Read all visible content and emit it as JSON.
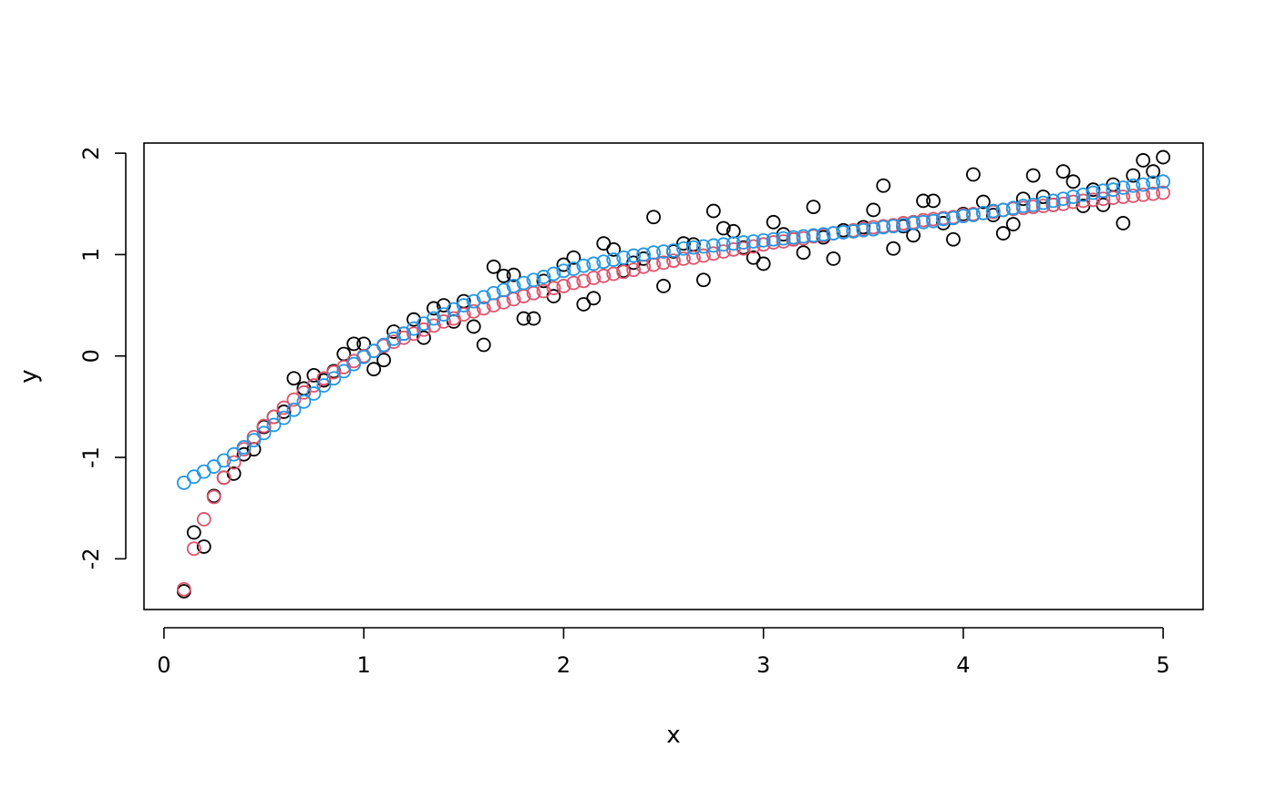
{
  "chart_data": {
    "type": "scatter",
    "title": "",
    "xlabel": "x",
    "ylabel": "y",
    "xlim": [
      -0.1,
      5.2
    ],
    "ylim": [
      -2.5,
      2.1
    ],
    "xticks": [
      0,
      1,
      2,
      3,
      4,
      5
    ],
    "yticks": [
      -2,
      -1,
      0,
      1,
      2
    ],
    "xtick_labels": [
      "0",
      "1",
      "2",
      "3",
      "4",
      "5"
    ],
    "ytick_labels": [
      "-2",
      "-1",
      "0",
      "1",
      "2"
    ],
    "grid": false,
    "legend": "none",
    "series": [
      {
        "color": "#000000",
        "marker": "open-circle",
        "x": [
          0.1,
          0.15,
          0.2,
          0.25,
          0.3,
          0.35,
          0.4,
          0.45,
          0.5,
          0.55,
          0.6,
          0.65,
          0.7,
          0.75,
          0.8,
          0.85,
          0.9,
          0.95,
          1.0,
          1.05,
          1.1,
          1.15,
          1.2,
          1.25,
          1.3,
          1.35,
          1.4,
          1.45,
          1.5,
          1.55,
          1.6,
          1.65,
          1.7,
          1.75,
          1.8,
          1.85,
          1.9,
          1.95,
          2.0,
          2.05,
          2.1,
          2.15,
          2.2,
          2.25,
          2.3,
          2.35,
          2.4,
          2.45,
          2.5,
          2.55,
          2.6,
          2.65,
          2.7,
          2.75,
          2.8,
          2.85,
          2.9,
          2.95,
          3.0,
          3.05,
          3.1,
          3.15,
          3.2,
          3.25,
          3.3,
          3.35,
          3.4,
          3.45,
          3.5,
          3.55,
          3.6,
          3.65,
          3.7,
          3.75,
          3.8,
          3.85,
          3.9,
          3.95,
          4.0,
          4.05,
          4.1,
          4.15,
          4.2,
          4.25,
          4.3,
          4.35,
          4.4,
          4.45,
          4.5,
          4.55,
          4.6,
          4.65,
          4.7,
          4.75,
          4.8,
          4.85,
          4.9,
          4.95,
          5.0
        ],
        "y": [
          -2.32,
          -1.74,
          -1.88,
          -1.38,
          -1.2,
          -1.16,
          -0.97,
          -0.92,
          -0.7,
          -0.6,
          -0.55,
          -0.22,
          -0.32,
          -0.19,
          -0.24,
          -0.15,
          0.02,
          0.12,
          0.12,
          -0.13,
          -0.04,
          0.24,
          0.22,
          0.36,
          0.18,
          0.47,
          0.5,
          0.34,
          0.54,
          0.29,
          0.11,
          0.88,
          0.79,
          0.8,
          0.37,
          0.37,
          0.74,
          0.59,
          0.9,
          0.97,
          0.51,
          0.57,
          1.11,
          1.05,
          0.84,
          0.92,
          0.96,
          1.37,
          0.69,
          1.03,
          1.11,
          1.1,
          0.75,
          1.43,
          1.26,
          1.23,
          1.07,
          0.97,
          0.91,
          1.32,
          1.2,
          1.15,
          1.02,
          1.47,
          1.17,
          0.96,
          1.24,
          1.23,
          1.27,
          1.44,
          1.68,
          1.06,
          1.28,
          1.19,
          1.53,
          1.53,
          1.31,
          1.15,
          1.4,
          1.79,
          1.52,
          1.39,
          1.21,
          1.3,
          1.55,
          1.78,
          1.57,
          1.49,
          1.82,
          1.72,
          1.48,
          1.64,
          1.49,
          1.69,
          1.31,
          1.78,
          1.93,
          1.82,
          1.96
        ]
      },
      {
        "color": "#df536b",
        "marker": "open-circle",
        "x": [
          0.1,
          0.15,
          0.2,
          0.25,
          0.3,
          0.35,
          0.4,
          0.45,
          0.5,
          0.55,
          0.6,
          0.65,
          0.7,
          0.75,
          0.8,
          0.85,
          0.9,
          0.95,
          1.0,
          1.05,
          1.1,
          1.15,
          1.2,
          1.25,
          1.3,
          1.35,
          1.4,
          1.45,
          1.5,
          1.55,
          1.6,
          1.65,
          1.7,
          1.75,
          1.8,
          1.85,
          1.9,
          1.95,
          2.0,
          2.05,
          2.1,
          2.15,
          2.2,
          2.25,
          2.3,
          2.35,
          2.4,
          2.45,
          2.5,
          2.55,
          2.6,
          2.65,
          2.7,
          2.75,
          2.8,
          2.85,
          2.9,
          2.95,
          3.0,
          3.05,
          3.1,
          3.15,
          3.2,
          3.25,
          3.3,
          3.35,
          3.4,
          3.45,
          3.5,
          3.55,
          3.6,
          3.65,
          3.7,
          3.75,
          3.8,
          3.85,
          3.9,
          3.95,
          4.0,
          4.05,
          4.1,
          4.15,
          4.2,
          4.25,
          4.3,
          4.35,
          4.4,
          4.45,
          4.5,
          4.55,
          4.6,
          4.65,
          4.7,
          4.75,
          4.8,
          4.85,
          4.9,
          4.95,
          5.0
        ],
        "y": [
          -2.3,
          -1.9,
          -1.61,
          -1.39,
          -1.2,
          -1.05,
          -0.92,
          -0.8,
          -0.69,
          -0.6,
          -0.51,
          -0.43,
          -0.36,
          -0.29,
          -0.22,
          -0.16,
          -0.11,
          -0.05,
          0.0,
          0.05,
          0.1,
          0.14,
          0.18,
          0.22,
          0.26,
          0.3,
          0.34,
          0.37,
          0.41,
          0.44,
          0.47,
          0.5,
          0.53,
          0.56,
          0.59,
          0.62,
          0.64,
          0.67,
          0.69,
          0.72,
          0.74,
          0.77,
          0.79,
          0.81,
          0.83,
          0.85,
          0.88,
          0.9,
          0.92,
          0.94,
          0.96,
          0.97,
          0.99,
          1.01,
          1.03,
          1.05,
          1.06,
          1.08,
          1.1,
          1.12,
          1.13,
          1.15,
          1.16,
          1.18,
          1.19,
          1.21,
          1.22,
          1.24,
          1.25,
          1.27,
          1.28,
          1.29,
          1.31,
          1.32,
          1.34,
          1.35,
          1.36,
          1.37,
          1.39,
          1.4,
          1.41,
          1.42,
          1.44,
          1.45,
          1.46,
          1.47,
          1.48,
          1.49,
          1.5,
          1.52,
          1.53,
          1.54,
          1.55,
          1.56,
          1.57,
          1.58,
          1.59,
          1.6,
          1.61
        ]
      },
      {
        "color": "#2297e6",
        "marker": "open-circle",
        "x": [
          0.1,
          0.15,
          0.2,
          0.25,
          0.3,
          0.35,
          0.4,
          0.45,
          0.5,
          0.55,
          0.6,
          0.65,
          0.7,
          0.75,
          0.8,
          0.85,
          0.9,
          0.95,
          1.0,
          1.05,
          1.1,
          1.15,
          1.2,
          1.25,
          1.3,
          1.35,
          1.4,
          1.45,
          1.5,
          1.55,
          1.6,
          1.65,
          1.7,
          1.75,
          1.8,
          1.85,
          1.9,
          1.95,
          2.0,
          2.05,
          2.1,
          2.15,
          2.2,
          2.25,
          2.3,
          2.35,
          2.4,
          2.45,
          2.5,
          2.55,
          2.6,
          2.65,
          2.7,
          2.75,
          2.8,
          2.85,
          2.9,
          2.95,
          3.0,
          3.05,
          3.1,
          3.15,
          3.2,
          3.25,
          3.3,
          3.35,
          3.4,
          3.45,
          3.5,
          3.55,
          3.6,
          3.65,
          3.7,
          3.75,
          3.8,
          3.85,
          3.9,
          3.95,
          4.0,
          4.05,
          4.1,
          4.15,
          4.2,
          4.25,
          4.3,
          4.35,
          4.4,
          4.45,
          4.5,
          4.55,
          4.6,
          4.65,
          4.7,
          4.75,
          4.8,
          4.85,
          4.9,
          4.95,
          5.0
        ],
        "y": [
          -1.25,
          -1.19,
          -1.14,
          -1.09,
          -1.03,
          -0.97,
          -0.9,
          -0.83,
          -0.76,
          -0.68,
          -0.61,
          -0.53,
          -0.45,
          -0.37,
          -0.29,
          -0.22,
          -0.15,
          -0.08,
          -0.01,
          0.05,
          0.11,
          0.17,
          0.22,
          0.27,
          0.32,
          0.37,
          0.41,
          0.46,
          0.5,
          0.54,
          0.58,
          0.62,
          0.65,
          0.69,
          0.72,
          0.75,
          0.78,
          0.81,
          0.84,
          0.86,
          0.89,
          0.91,
          0.93,
          0.95,
          0.97,
          0.99,
          1.0,
          1.02,
          1.03,
          1.04,
          1.06,
          1.07,
          1.08,
          1.09,
          1.1,
          1.11,
          1.12,
          1.13,
          1.14,
          1.15,
          1.16,
          1.17,
          1.18,
          1.19,
          1.2,
          1.21,
          1.22,
          1.23,
          1.24,
          1.25,
          1.27,
          1.28,
          1.29,
          1.31,
          1.32,
          1.33,
          1.35,
          1.36,
          1.38,
          1.39,
          1.41,
          1.43,
          1.44,
          1.46,
          1.48,
          1.49,
          1.51,
          1.53,
          1.55,
          1.57,
          1.59,
          1.61,
          1.63,
          1.64,
          1.66,
          1.68,
          1.69,
          1.71,
          1.72
        ]
      }
    ]
  }
}
